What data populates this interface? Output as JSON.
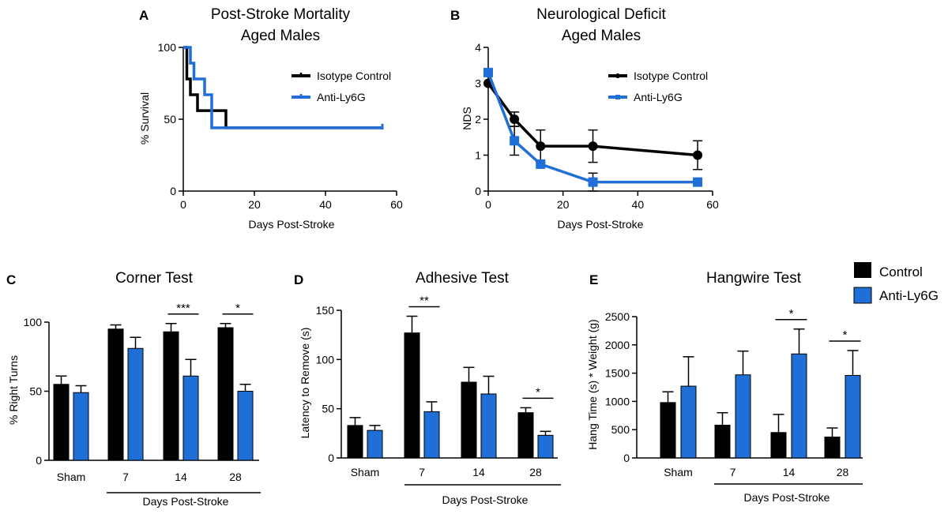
{
  "colors": {
    "control": "#000000",
    "treatment": "#1f6fd6"
  },
  "panels": {
    "A": {
      "letter": "A",
      "title_line1": "Post-Stroke Mortality",
      "title_line2": "Aged Males",
      "ylabel": "% Survival",
      "xlabel": "Days Post-Stroke",
      "xticks": [
        "0",
        "20",
        "40",
        "60"
      ],
      "yticks": [
        "0",
        "50",
        "100"
      ],
      "legend": [
        "Isotype Control",
        "Anti-Ly6G"
      ]
    },
    "B": {
      "letter": "B",
      "title_line1": "Neurological Deficit",
      "title_line2": "Aged Males",
      "ylabel": "NDS",
      "xlabel": "Days Post-Stroke",
      "xticks": [
        "0",
        "20",
        "40",
        "60"
      ],
      "yticks": [
        "0",
        "1",
        "2",
        "3",
        "4"
      ],
      "legend": [
        "Isotype Control",
        "Anti-Ly6G"
      ]
    },
    "C": {
      "letter": "C",
      "title": "Corner Test",
      "ylabel": "% Right Turns",
      "xlabel": "Days Post-Stroke",
      "categories": [
        "Sham",
        "7",
        "14",
        "28"
      ],
      "yticks": [
        "0",
        "50",
        "100"
      ]
    },
    "D": {
      "letter": "D",
      "title": "Adhesive Test",
      "ylabel": "Latency to Remove (s)",
      "xlabel": "Days Post-Stroke",
      "categories": [
        "Sham",
        "7",
        "14",
        "28"
      ],
      "yticks": [
        "0",
        "50",
        "100",
        "150"
      ]
    },
    "E": {
      "letter": "E",
      "title": "Hangwire Test",
      "ylabel": "Hang Time (s) * Weight (g)",
      "xlabel": "Days Post-Stroke",
      "categories": [
        "Sham",
        "7",
        "14",
        "28"
      ],
      "yticks": [
        "0",
        "500",
        "1000",
        "1500",
        "2000",
        "2500"
      ]
    }
  },
  "bar_legend": [
    "Control",
    "Anti-Ly6G"
  ],
  "chart_data": [
    {
      "panel": "A",
      "type": "line",
      "step": true,
      "title": "Post-Stroke Mortality Aged Males",
      "xlabel": "Days Post-Stroke",
      "ylabel": "% Survival",
      "xlim": [
        0,
        60
      ],
      "ylim": [
        0,
        100
      ],
      "series": [
        {
          "name": "Isotype Control",
          "x": [
            0,
            1,
            2,
            4,
            12,
            56
          ],
          "y": [
            100,
            78,
            67,
            56,
            44,
            44
          ]
        },
        {
          "name": "Anti-Ly6G",
          "x": [
            0,
            2,
            3,
            6,
            8,
            56
          ],
          "y": [
            100,
            89,
            78,
            67,
            44,
            44
          ]
        }
      ]
    },
    {
      "panel": "B",
      "type": "line",
      "title": "Neurological Deficit Aged Males",
      "xlabel": "Days Post-Stroke",
      "ylabel": "NDS",
      "xlim": [
        0,
        60
      ],
      "ylim": [
        0,
        4
      ],
      "series": [
        {
          "name": "Isotype Control",
          "x": [
            0,
            7,
            14,
            28,
            56
          ],
          "y": [
            3.0,
            2.0,
            1.25,
            1.25,
            1.0
          ],
          "err": [
            0.1,
            0.2,
            0.45,
            0.45,
            0.4
          ]
        },
        {
          "name": "Anti-Ly6G",
          "x": [
            0,
            7,
            14,
            28,
            56
          ],
          "y": [
            3.3,
            1.4,
            0.75,
            0.25,
            0.25
          ],
          "err": [
            0.1,
            0.4,
            0.1,
            0.25,
            0.1
          ]
        }
      ]
    },
    {
      "panel": "C",
      "type": "bar",
      "title": "Corner Test",
      "ylabel": "% Right Turns",
      "xlabel": "Days Post-Stroke",
      "categories": [
        "Sham",
        "7",
        "14",
        "28"
      ],
      "ylim": [
        0,
        100
      ],
      "series": [
        {
          "name": "Control",
          "values": [
            55,
            95,
            93,
            96
          ],
          "err": [
            6,
            3,
            6,
            3
          ]
        },
        {
          "name": "Anti-Ly6G",
          "values": [
            49,
            81,
            61,
            50
          ],
          "err": [
            5,
            8,
            12,
            5
          ]
        }
      ],
      "significance": [
        {
          "category": "14",
          "label": "***"
        },
        {
          "category": "28",
          "label": "*"
        }
      ]
    },
    {
      "panel": "D",
      "type": "bar",
      "title": "Adhesive Test",
      "ylabel": "Latency to Remove (s)",
      "xlabel": "Days Post-Stroke",
      "categories": [
        "Sham",
        "7",
        "14",
        "28"
      ],
      "ylim": [
        0,
        150
      ],
      "series": [
        {
          "name": "Control",
          "values": [
            33,
            127,
            77,
            46
          ],
          "err": [
            8,
            17,
            15,
            5
          ]
        },
        {
          "name": "Anti-Ly6G",
          "values": [
            28,
            47,
            65,
            23
          ],
          "err": [
            5,
            10,
            18,
            4
          ]
        }
      ],
      "significance": [
        {
          "category": "7",
          "label": "**"
        },
        {
          "category": "28",
          "label": "*"
        }
      ]
    },
    {
      "panel": "E",
      "type": "bar",
      "title": "Hangwire Test",
      "ylabel": "Hang Time (s) * Weight (g)",
      "xlabel": "Days Post-Stroke",
      "categories": [
        "Sham",
        "7",
        "14",
        "28"
      ],
      "ylim": [
        0,
        2500
      ],
      "series": [
        {
          "name": "Control",
          "values": [
            980,
            580,
            450,
            370
          ],
          "err": [
            190,
            220,
            320,
            160
          ]
        },
        {
          "name": "Anti-Ly6G",
          "values": [
            1270,
            1470,
            1840,
            1460
          ],
          "err": [
            520,
            420,
            440,
            440
          ]
        }
      ],
      "significance": [
        {
          "category": "14",
          "label": "*"
        },
        {
          "category": "28",
          "label": "*"
        }
      ]
    }
  ]
}
